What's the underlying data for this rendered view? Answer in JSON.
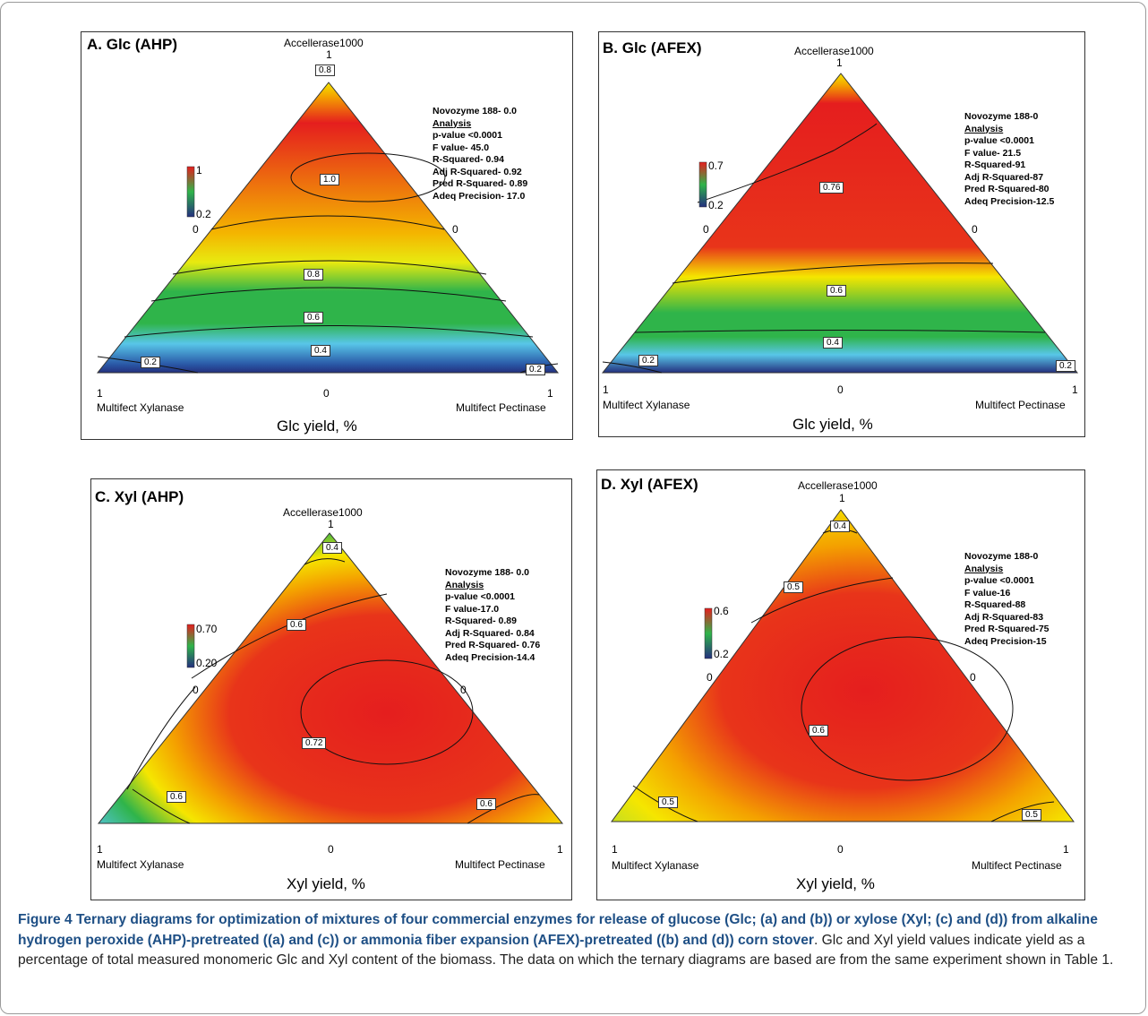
{
  "figure": {
    "caption_bold": "Figure 4 Ternary diagrams for optimization of mixtures of four commercial enzymes for release of glucose (Glc; (a) and (b)) or xylose (Xyl; (c) and (d)) from alkaline hydrogen peroxide (AHP)-pretreated ((a) and (c)) or ammonia fiber expansion (AFEX)-pretreated ((b) and (d)) corn stover",
    "caption_text": ". Glc and Xyl yield values indicate yield as a percentage of total measured monomeric Glc and Xyl content of the biomass. The data on which the ternary diagrams are based are from the same experiment shown in Table 1."
  },
  "colors": {
    "high": "#e51e1e",
    "mid": "#f5e600",
    "low_mid": "#2fb44a",
    "low": "#24307e",
    "cyan": "#58c6e8"
  },
  "panels": [
    {
      "id": "A",
      "title": "A. Glc (AHP)",
      "top_label": "Accellerase1000",
      "top_value": "1",
      "left_zero": "0",
      "right_zero": "0",
      "left_one": "1",
      "bottom_zero": "0",
      "right_one": "1",
      "left_label": "Multifect Xylanase",
      "right_label": "Multifect Pectinase",
      "xlabel": "Glc yield, %",
      "scale_max": "1",
      "scale_min": "0.2",
      "stats": [
        "Novozyme 188- 0.0",
        "Analysis",
        "p-value <0.0001",
        "F value- 45.0",
        "R-Squared- 0.94",
        "Adj R-Squared- 0.92",
        "Pred R-Squared- 0.89",
        "Adeq Precision- 17.0"
      ],
      "contour_labels": [
        "0.8",
        "1.0",
        "0.8",
        "0.6",
        "0.4",
        "0.2",
        "0.2"
      ]
    },
    {
      "id": "B",
      "title": "B. Glc (AFEX)",
      "top_label": "Accellerase1000",
      "top_value": "1",
      "left_zero": "0",
      "right_zero": "0",
      "left_one": "1",
      "bottom_zero": "0",
      "right_one": "1",
      "left_label": "Multifect Xylanase",
      "right_label": "Multifect Pectinase",
      "xlabel": "Glc yield, %",
      "scale_max": "0.7",
      "scale_min": "0.2",
      "stats": [
        "Novozyme 188-0",
        "Analysis",
        "p-value <0.0001",
        "F value- 21.5",
        "R-Squared-91",
        "Adj R-Squared-87",
        "Pred R-Squared-80",
        "Adeq Precision-12.5"
      ],
      "contour_labels": [
        "0.76",
        "0.6",
        "0.4",
        "0.2",
        "0.2"
      ]
    },
    {
      "id": "C",
      "title": "C. Xyl (AHP)",
      "top_label": "Accellerase1000",
      "top_value": "1",
      "left_zero": "0",
      "right_zero": "0",
      "left_one": "1",
      "bottom_zero": "0",
      "right_one": "1",
      "left_label": "Multifect Xylanase",
      "right_label": "Multifect Pectinase",
      "xlabel": "Xyl yield, %",
      "scale_max": "0.70",
      "scale_min": "0.20",
      "stats": [
        "Novozyme 188- 0.0",
        "Analysis",
        "p-value <0.0001",
        "F value-17.0",
        "R-Squared- 0.89",
        "Adj R-Squared- 0.84",
        "Pred R-Squared- 0.76",
        "Adeq Precision-14.4"
      ],
      "contour_labels": [
        "0.4",
        "0.6",
        "0.72",
        "0.6",
        "0.6"
      ]
    },
    {
      "id": "D",
      "title": "D. Xyl (AFEX)",
      "top_label": "Accellerase1000",
      "top_value": "1",
      "left_zero": "0",
      "right_zero": "0",
      "left_one": "1",
      "bottom_zero": "0",
      "right_one": "1",
      "left_label": "Multifect Xylanase",
      "right_label": "Multifect Pectinase",
      "xlabel": "Xyl yield, %",
      "scale_max": "0.6",
      "scale_min": "0.2",
      "stats": [
        "Novozyme 188-0",
        "Analysis",
        "p-value <0.0001",
        "F value-16",
        "R-Squared-88",
        "Adj R-Squared-83",
        "Pred R-Squared-75",
        "Adeq Precision-15"
      ],
      "contour_labels": [
        "0.4",
        "0.5",
        "0.6",
        "0.5",
        "0.5"
      ]
    }
  ],
  "chart_data": [
    {
      "type": "heatmap",
      "title": "A. Glc (AHP)",
      "xlabel": "Glc yield, %",
      "vertices": [
        "Accellerase1000",
        "Multifect Xylanase",
        "Multifect Pectinase"
      ],
      "color_range": [
        0.2,
        1.0
      ],
      "contour_levels": [
        0.2,
        0.4,
        0.6,
        0.8,
        1.0
      ]
    },
    {
      "type": "heatmap",
      "title": "B. Glc (AFEX)",
      "xlabel": "Glc yield, %",
      "vertices": [
        "Accellerase1000",
        "Multifect Xylanase",
        "Multifect Pectinase"
      ],
      "color_range": [
        0.2,
        0.7
      ],
      "contour_levels": [
        0.2,
        0.4,
        0.6,
        0.76
      ]
    },
    {
      "type": "heatmap",
      "title": "C. Xyl (AHP)",
      "xlabel": "Xyl yield, %",
      "vertices": [
        "Accellerase1000",
        "Multifect Xylanase",
        "Multifect Pectinase"
      ],
      "color_range": [
        0.2,
        0.7
      ],
      "contour_levels": [
        0.4,
        0.6,
        0.72
      ]
    },
    {
      "type": "heatmap",
      "title": "D. Xyl (AFEX)",
      "xlabel": "Xyl yield, %",
      "vertices": [
        "Accellerase1000",
        "Multifect Xylanase",
        "Multifect Pectinase"
      ],
      "color_range": [
        0.2,
        0.6
      ],
      "contour_levels": [
        0.4,
        0.5,
        0.6
      ]
    }
  ]
}
